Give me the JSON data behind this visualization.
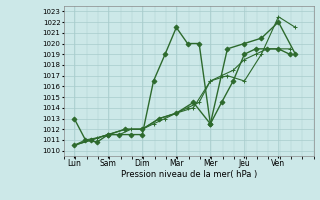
{
  "title": "",
  "xlabel": "Pression niveau de la mer( hPa )",
  "ylim": [
    1009.5,
    1023.5
  ],
  "yticks": [
    1010,
    1011,
    1012,
    1013,
    1014,
    1015,
    1016,
    1017,
    1018,
    1019,
    1020,
    1021,
    1022,
    1023
  ],
  "x_labels": [
    "Lun",
    "Sam",
    "Dim",
    "Mar",
    "Mer",
    "Jeu",
    "Ven"
  ],
  "x_positions": [
    0,
    1,
    2,
    3,
    4,
    5,
    6
  ],
  "xlim": [
    -0.3,
    7.0
  ],
  "line1": {
    "x": [
      0.0,
      0.33,
      0.67,
      1.0,
      1.33,
      1.67,
      2.0,
      2.33,
      2.67,
      3.0,
      3.33,
      3.67,
      4.0,
      4.33,
      4.67,
      5.0,
      5.33,
      5.67,
      6.0,
      6.33
    ],
    "y": [
      1013.0,
      1011.0,
      1010.8,
      1011.5,
      1011.5,
      1011.5,
      1011.5,
      1016.5,
      1019.0,
      1021.5,
      1020.0,
      1020.0,
      1012.5,
      1014.5,
      1016.5,
      1019.0,
      1019.5,
      1019.5,
      1019.5,
      1019.0
    ],
    "color": "#2d6a2d",
    "marker": "D",
    "markersize": 2.5,
    "linewidth": 1.0,
    "linestyle": "-"
  },
  "line2": {
    "x": [
      0.0,
      0.33,
      0.67,
      1.0,
      1.33,
      1.67,
      2.0,
      2.33,
      2.67,
      3.0,
      3.33,
      3.67,
      4.0,
      4.33,
      4.67,
      5.0,
      5.33,
      5.67,
      6.0,
      6.33
    ],
    "y": [
      1010.5,
      1011.0,
      1011.2,
      1011.5,
      1011.5,
      1012.0,
      1012.0,
      1012.5,
      1013.0,
      1013.5,
      1014.0,
      1014.5,
      1016.5,
      1017.0,
      1017.5,
      1018.5,
      1019.0,
      1019.5,
      1019.5,
      1019.5
    ],
    "color": "#2d6a2d",
    "marker": "+",
    "markersize": 3.5,
    "linewidth": 0.8,
    "linestyle": "-"
  },
  "line3": {
    "x": [
      0.0,
      0.5,
      1.0,
      1.5,
      2.0,
      2.5,
      3.0,
      3.5,
      4.0,
      4.5,
      5.0,
      5.5,
      6.0,
      6.5
    ],
    "y": [
      1010.5,
      1011.0,
      1011.5,
      1012.0,
      1012.0,
      1013.0,
      1013.5,
      1014.0,
      1016.5,
      1017.0,
      1016.5,
      1019.0,
      1022.5,
      1021.5
    ],
    "color": "#2d6a2d",
    "marker": "+",
    "markersize": 3.5,
    "linewidth": 0.8,
    "linestyle": "-"
  },
  "line4": {
    "x": [
      0.0,
      0.5,
      1.0,
      1.5,
      2.0,
      2.5,
      3.0,
      3.5,
      4.0,
      4.5,
      5.0,
      5.5,
      6.0,
      6.5
    ],
    "y": [
      1010.5,
      1011.0,
      1011.5,
      1012.0,
      1012.0,
      1013.0,
      1013.5,
      1014.5,
      1012.5,
      1019.5,
      1020.0,
      1020.5,
      1022.0,
      1019.0
    ],
    "color": "#2d6a2d",
    "marker": "D",
    "markersize": 2.5,
    "linewidth": 1.0,
    "linestyle": "-"
  },
  "bg_color": "#cce8e8",
  "grid_color": "#a8cccc",
  "line_color": "#2d6a2d"
}
